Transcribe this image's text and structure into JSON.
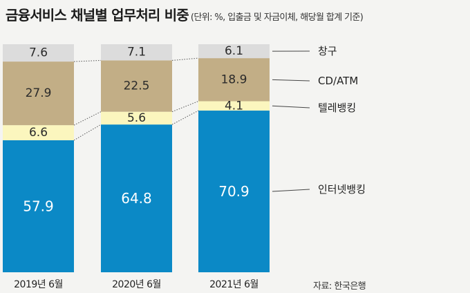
{
  "title": "금융서비스 채널별 업무처리 비중",
  "subtitle": "(단위: %, 입출금 및 자금이체, 해당월 합계 기준)",
  "source": "자료: 한국은행",
  "chart_data": {
    "type": "bar",
    "stacked": true,
    "categories": [
      "2019년 6월",
      "2020년 6월",
      "2021년 6월"
    ],
    "series": [
      {
        "name": "인터넷뱅킹",
        "values": [
          57.9,
          64.8,
          70.9
        ],
        "color": "#0b89c6"
      },
      {
        "name": "텔레뱅킹",
        "values": [
          6.6,
          5.6,
          4.1
        ],
        "color": "#fbf6be"
      },
      {
        "name": "CD/ATM",
        "values": [
          27.9,
          22.5,
          18.9
        ],
        "color": "#c2ae86"
      },
      {
        "name": "창구",
        "values": [
          7.6,
          7.1,
          6.1
        ],
        "color": "#dcdcdc"
      }
    ],
    "ylim": [
      0,
      100
    ],
    "legend": "right"
  }
}
